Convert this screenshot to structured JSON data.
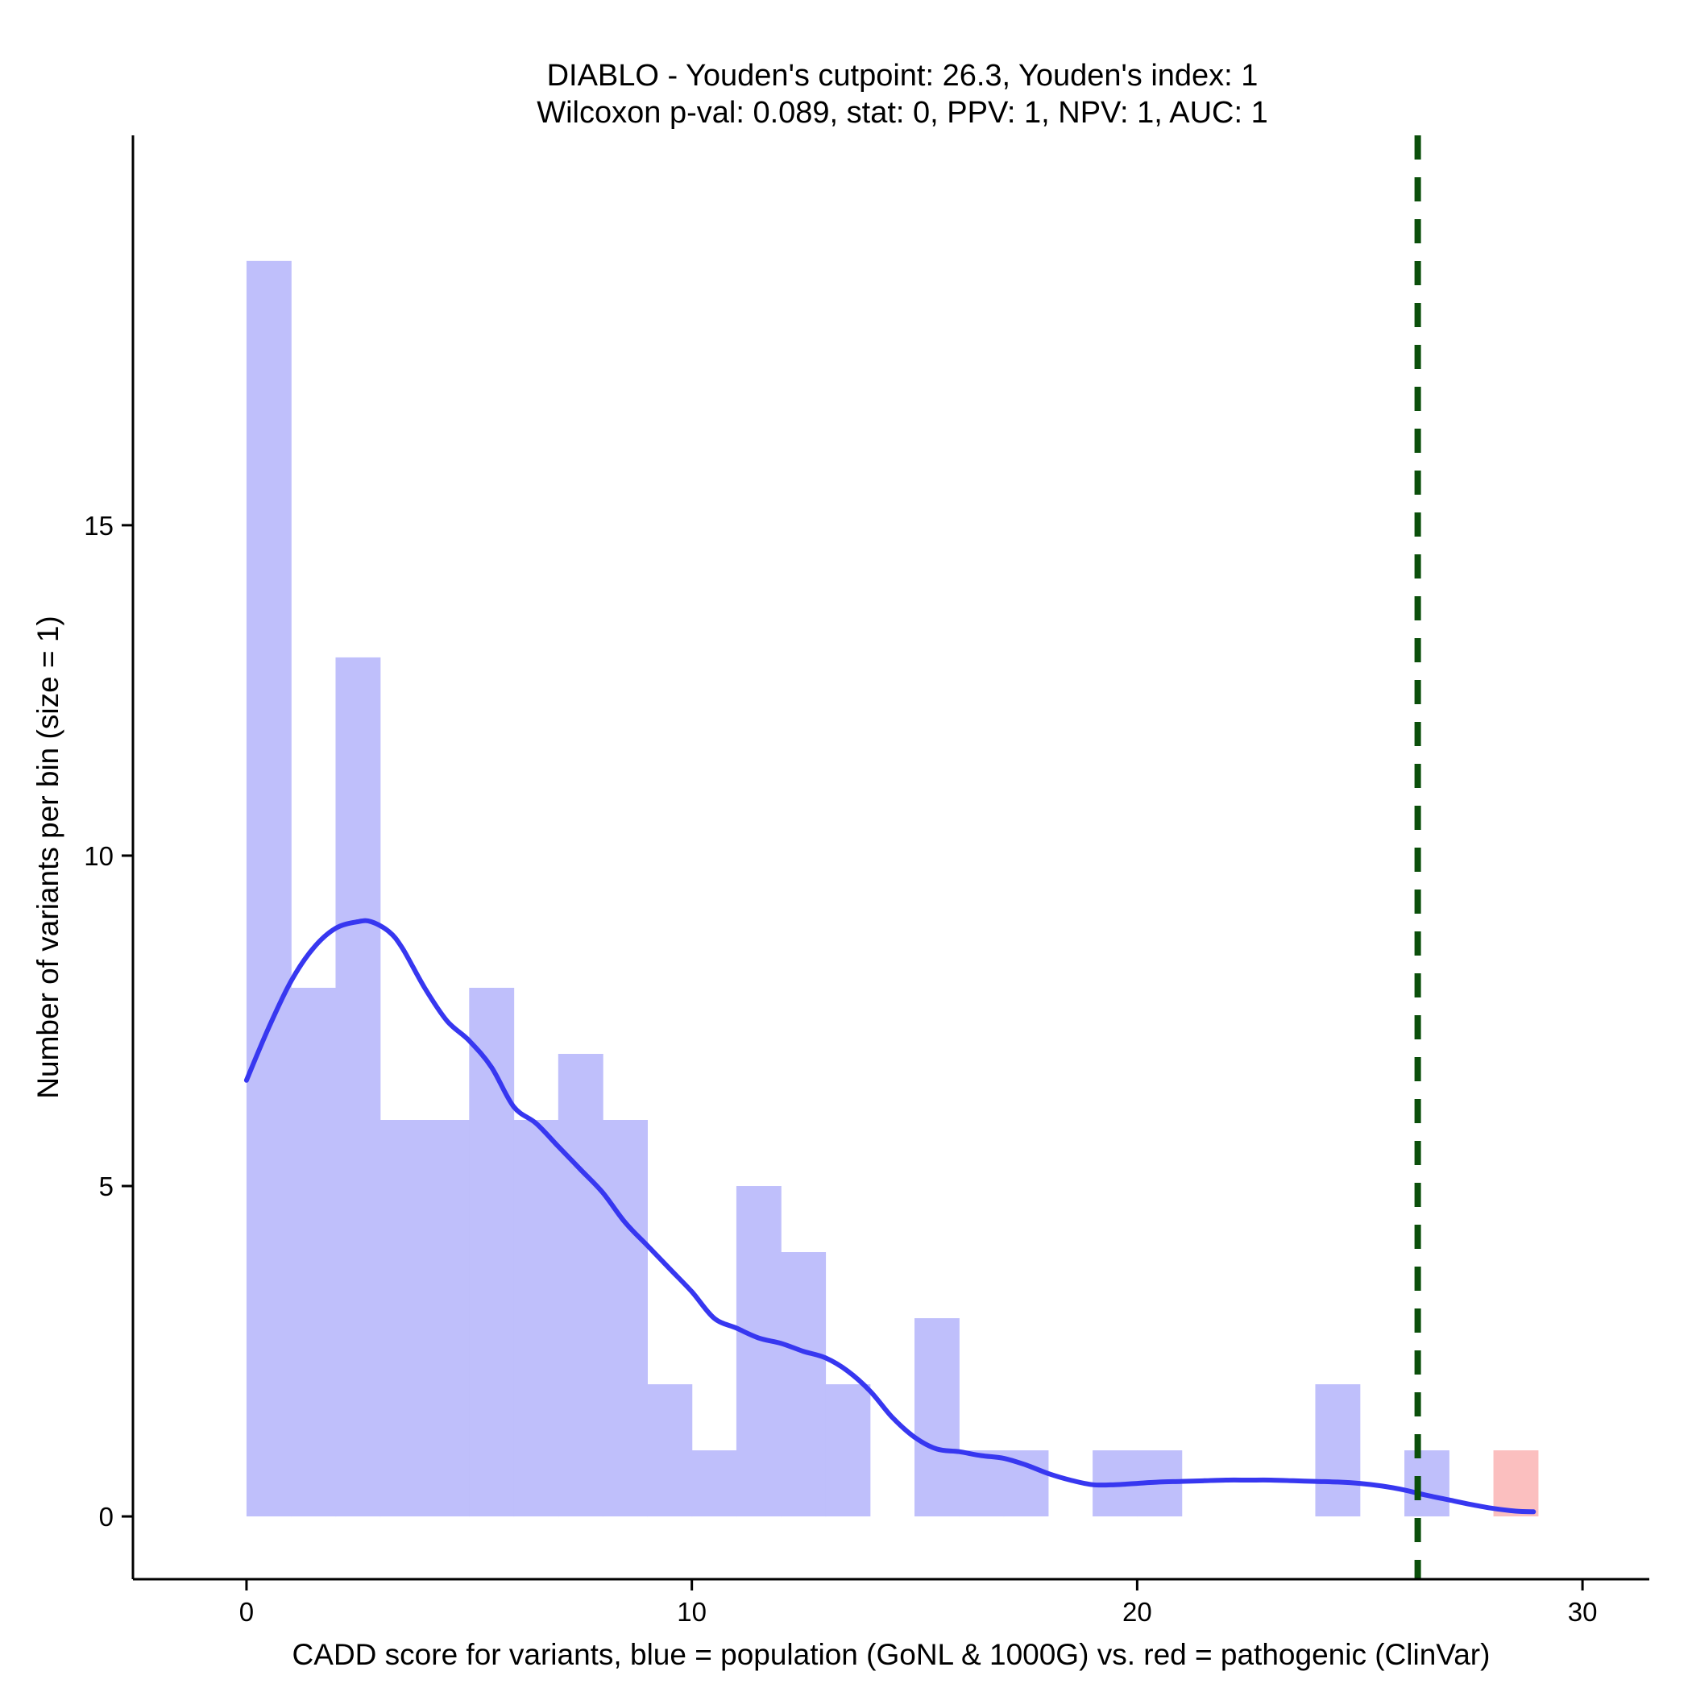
{
  "chart_data": {
    "type": "bar",
    "title_line1": "DIABLO - Youden's cutpoint: 26.3, Youden's index: 1",
    "title_line2": "Wilcoxon p-val: 0.089, stat: 0, PPV: 1, NPV: 1, AUC: 1",
    "xlabel": "CADD score for variants, blue = population (GoNL & 1000G) vs. red = pathogenic (ClinVar)",
    "ylabel": "Number of variants per bin (size = 1)",
    "xlim": [
      -2.55,
      31.5
    ],
    "ylim": [
      -0.95,
      20.9
    ],
    "x_ticks": [
      0,
      10,
      20,
      30
    ],
    "y_ticks": [
      0,
      5,
      10,
      15
    ],
    "bin_width": 1,
    "colors": {
      "population": "#bfbffb",
      "pathogenic": "#fbbfbf",
      "density": "#3737f0",
      "cutpoint": "#0b4f0b",
      "axis": "#000000"
    },
    "cutpoint": 26.3,
    "series": [
      {
        "name": "population",
        "bins": [
          {
            "x0": 0,
            "count": 19
          },
          {
            "x0": 1,
            "count": 8
          },
          {
            "x0": 2,
            "count": 13
          },
          {
            "x0": 3,
            "count": 6
          },
          {
            "x0": 4,
            "count": 6
          },
          {
            "x0": 5,
            "count": 8
          },
          {
            "x0": 6,
            "count": 6
          },
          {
            "x0": 7,
            "count": 7
          },
          {
            "x0": 8,
            "count": 6
          },
          {
            "x0": 9,
            "count": 2
          },
          {
            "x0": 10,
            "count": 1
          },
          {
            "x0": 11,
            "count": 5
          },
          {
            "x0": 12,
            "count": 4
          },
          {
            "x0": 13,
            "count": 2
          },
          {
            "x0": 15,
            "count": 3
          },
          {
            "x0": 16,
            "count": 1
          },
          {
            "x0": 17,
            "count": 1
          },
          {
            "x0": 19,
            "count": 1
          },
          {
            "x0": 20,
            "count": 1
          },
          {
            "x0": 24,
            "count": 2
          },
          {
            "x0": 26,
            "count": 1
          }
        ]
      },
      {
        "name": "pathogenic",
        "bins": [
          {
            "x0": 28,
            "count": 1
          }
        ]
      }
    ],
    "density_curve": {
      "x": [
        0,
        0.5,
        1.0,
        1.5,
        2.0,
        2.5,
        2.8,
        3.2,
        3.5,
        4.0,
        4.5,
        5.0,
        5.5,
        6.0,
        6.5,
        7.0,
        7.5,
        8.0,
        8.5,
        9.0,
        9.5,
        10.0,
        10.5,
        11.0,
        11.5,
        12.0,
        12.5,
        13.0,
        13.5,
        14.0,
        14.5,
        15.0,
        15.5,
        16.0,
        16.5,
        17.0,
        17.5,
        18.0,
        18.5,
        19.0,
        19.5,
        20.0,
        20.5,
        21.0,
        21.5,
        22.0,
        22.5,
        23.0,
        23.5,
        24.0,
        24.5,
        25.0,
        25.5,
        26.0,
        26.5,
        27.0,
        27.5,
        28.0,
        28.5,
        28.9
      ],
      "y": [
        6.6,
        7.4,
        8.1,
        8.6,
        8.9,
        9.0,
        9.0,
        8.85,
        8.6,
        8.0,
        7.5,
        7.2,
        6.8,
        6.2,
        5.95,
        5.6,
        5.25,
        4.9,
        4.45,
        4.1,
        3.75,
        3.4,
        3.0,
        2.85,
        2.7,
        2.62,
        2.5,
        2.4,
        2.2,
        1.9,
        1.5,
        1.2,
        1.02,
        0.98,
        0.92,
        0.88,
        0.78,
        0.65,
        0.55,
        0.48,
        0.48,
        0.5,
        0.52,
        0.53,
        0.54,
        0.55,
        0.55,
        0.55,
        0.54,
        0.53,
        0.52,
        0.5,
        0.46,
        0.4,
        0.32,
        0.25,
        0.18,
        0.12,
        0.08,
        0.07
      ]
    }
  }
}
